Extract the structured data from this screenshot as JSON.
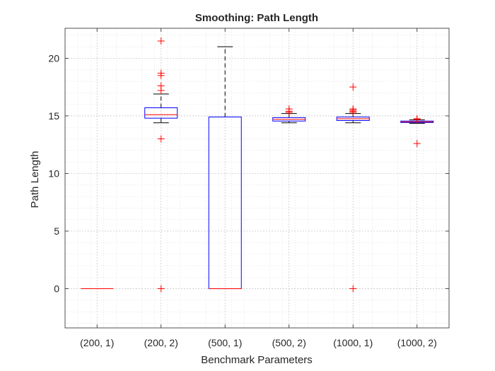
{
  "chart_data": {
    "type": "boxplot",
    "title": "Smoothing: Path Length",
    "xlabel": "Benchmark Parameters",
    "ylabel": "Path Length",
    "ylim": [
      -3.4,
      22.6
    ],
    "yticks": [
      0,
      5,
      10,
      15,
      20
    ],
    "grid": "major-and-minor",
    "categories": [
      "(200, 1)",
      "(200, 2)",
      "(500, 1)",
      "(500, 2)",
      "(1000, 1)",
      "(1000, 2)"
    ],
    "boxes": [
      {
        "category": "(200, 1)",
        "whisker_low": 0,
        "q1": 0,
        "median": 0,
        "q3": 0,
        "whisker_high": 0,
        "outliers": []
      },
      {
        "category": "(200, 2)",
        "whisker_low": 14.4,
        "q1": 14.8,
        "median": 15.1,
        "q3": 15.7,
        "whisker_high": 16.9,
        "outliers": [
          0,
          13.0,
          17.2,
          17.6,
          18.5,
          18.7,
          21.5
        ]
      },
      {
        "category": "(500, 1)",
        "whisker_low": 0,
        "q1": 0,
        "median": 0,
        "q3": 14.9,
        "whisker_high": 21.0,
        "outliers": []
      },
      {
        "category": "(500, 2)",
        "whisker_low": 14.4,
        "q1": 14.55,
        "median": 14.7,
        "q3": 14.85,
        "whisker_high": 15.2,
        "outliers": [
          15.3,
          15.4,
          15.6
        ]
      },
      {
        "category": "(1000, 1)",
        "whisker_low": 14.4,
        "q1": 14.6,
        "median": 14.75,
        "q3": 14.9,
        "whisker_high": 15.2,
        "outliers": [
          0,
          15.3,
          15.4,
          15.5,
          15.6,
          17.5
        ]
      },
      {
        "category": "(1000, 2)",
        "whisker_low": 14.35,
        "q1": 14.42,
        "median": 14.48,
        "q3": 14.55,
        "whisker_high": 14.65,
        "outliers": [
          12.6,
          14.7,
          14.75
        ]
      }
    ],
    "colors": {
      "box": "#0000ff",
      "median": "#ff0000",
      "whisker": "#000000",
      "outlier": "#ff0000",
      "grid": "#d9d9d9",
      "axis": "#262626"
    }
  }
}
